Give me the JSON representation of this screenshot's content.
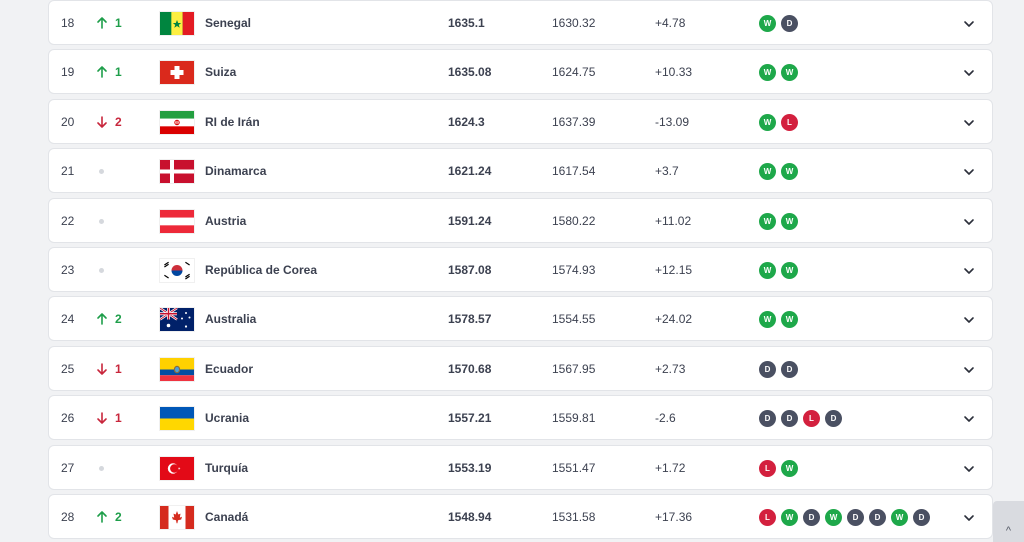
{
  "colors": {
    "up": "#1e9e4a",
    "down": "#c8263c",
    "win": "#1ea84a",
    "draw": "#4a5062",
    "loss": "#d3203e"
  },
  "scroll_top": {
    "icon": "chevron-up-icon",
    "glyph": "^"
  },
  "rows": [
    {
      "rank": "18",
      "move": "up",
      "move_value": "1",
      "flag": "senegal",
      "team": "Senegal",
      "points": "1635.1",
      "previous": "1630.32",
      "diff": "+4.78",
      "form": [
        "W",
        "D"
      ]
    },
    {
      "rank": "19",
      "move": "up",
      "move_value": "1",
      "flag": "switzerland",
      "team": "Suiza",
      "points": "1635.08",
      "previous": "1624.75",
      "diff": "+10.33",
      "form": [
        "W",
        "W"
      ]
    },
    {
      "rank": "20",
      "move": "down",
      "move_value": "2",
      "flag": "iran",
      "team": "RI de Irán",
      "points": "1624.3",
      "previous": "1637.39",
      "diff": "-13.09",
      "form": [
        "W",
        "L"
      ]
    },
    {
      "rank": "21",
      "move": "none",
      "move_value": "",
      "flag": "denmark",
      "team": "Dinamarca",
      "points": "1621.24",
      "previous": "1617.54",
      "diff": "+3.7",
      "form": [
        "W",
        "W"
      ]
    },
    {
      "rank": "22",
      "move": "none",
      "move_value": "",
      "flag": "austria",
      "team": "Austria",
      "points": "1591.24",
      "previous": "1580.22",
      "diff": "+11.02",
      "form": [
        "W",
        "W"
      ]
    },
    {
      "rank": "23",
      "move": "none",
      "move_value": "",
      "flag": "korea",
      "team": "República de Corea",
      "points": "1587.08",
      "previous": "1574.93",
      "diff": "+12.15",
      "form": [
        "W",
        "W"
      ]
    },
    {
      "rank": "24",
      "move": "up",
      "move_value": "2",
      "flag": "australia",
      "team": "Australia",
      "points": "1578.57",
      "previous": "1554.55",
      "diff": "+24.02",
      "form": [
        "W",
        "W"
      ]
    },
    {
      "rank": "25",
      "move": "down",
      "move_value": "1",
      "flag": "ecuador",
      "team": "Ecuador",
      "points": "1570.68",
      "previous": "1567.95",
      "diff": "+2.73",
      "form": [
        "D",
        "D"
      ]
    },
    {
      "rank": "26",
      "move": "down",
      "move_value": "1",
      "flag": "ukraine",
      "team": "Ucrania",
      "points": "1557.21",
      "previous": "1559.81",
      "diff": "-2.6",
      "form": [
        "D",
        "D",
        "L",
        "D"
      ]
    },
    {
      "rank": "27",
      "move": "none",
      "move_value": "",
      "flag": "turkey",
      "team": "Turquía",
      "points": "1553.19",
      "previous": "1551.47",
      "diff": "+1.72",
      "form": [
        "L",
        "W"
      ]
    },
    {
      "rank": "28",
      "move": "up",
      "move_value": "2",
      "flag": "canada",
      "team": "Canadá",
      "points": "1548.94",
      "previous": "1531.58",
      "diff": "+17.36",
      "form": [
        "L",
        "W",
        "D",
        "W",
        "D",
        "D",
        "W",
        "D"
      ]
    }
  ]
}
